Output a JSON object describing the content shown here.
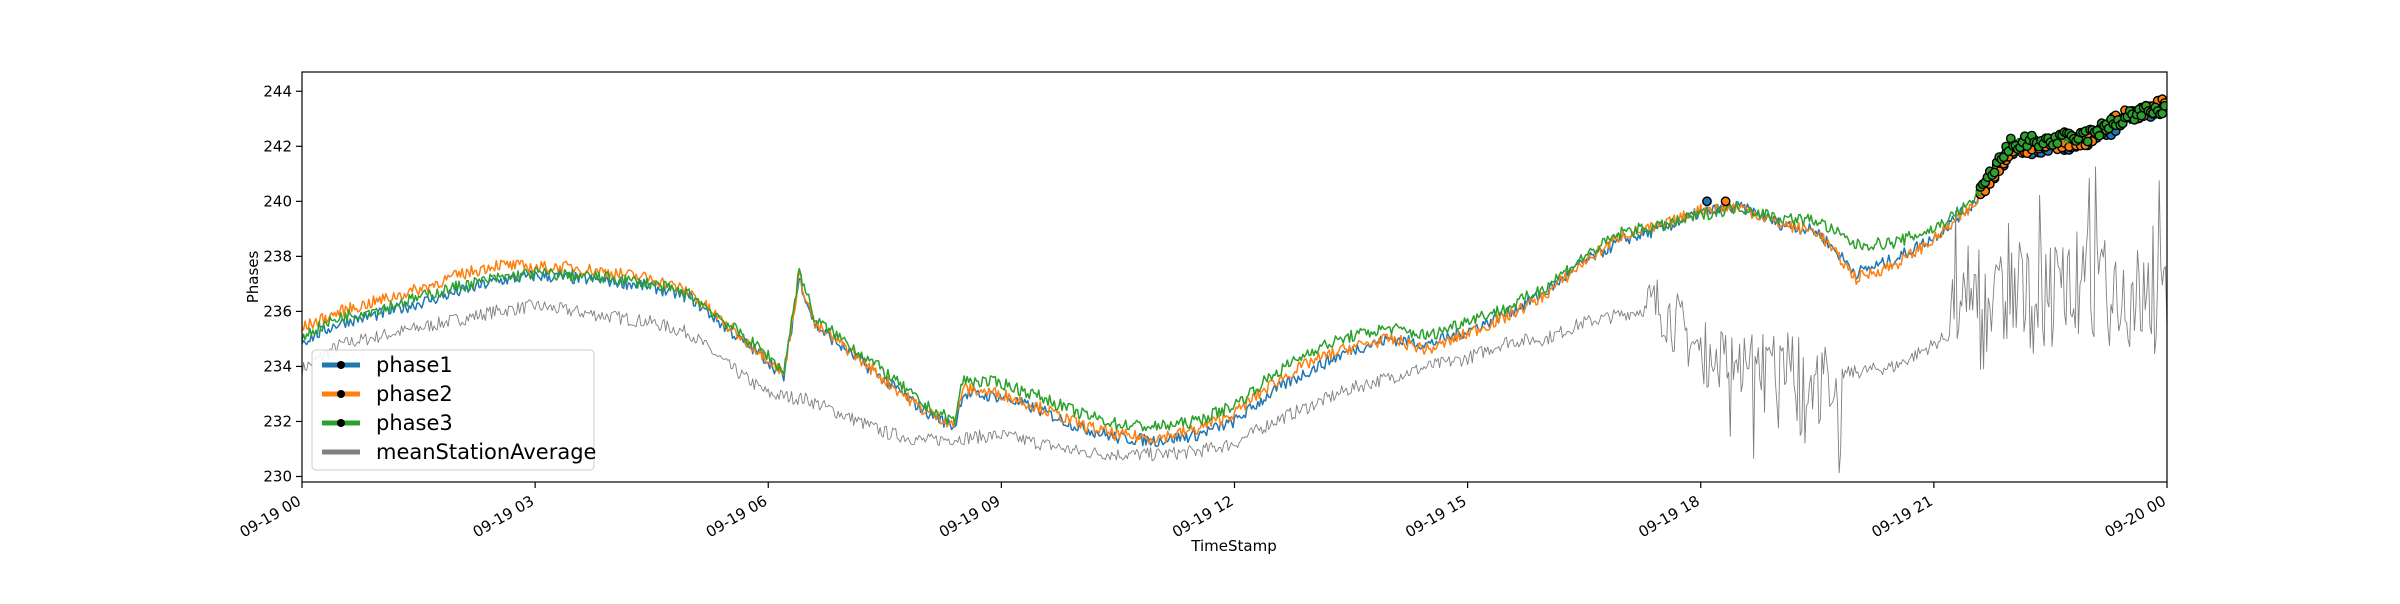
{
  "chart_data": {
    "type": "line",
    "title": "",
    "xlabel": "TimeStamp",
    "ylabel": "Phases",
    "xlim_hours": [
      0,
      24
    ],
    "ylim": [
      229.8,
      244.7
    ],
    "x_ticks": [
      {
        "hour": 0,
        "label": "09-19 00"
      },
      {
        "hour": 3,
        "label": "09-19 03"
      },
      {
        "hour": 6,
        "label": "09-19 06"
      },
      {
        "hour": 9,
        "label": "09-19 09"
      },
      {
        "hour": 12,
        "label": "09-19 12"
      },
      {
        "hour": 15,
        "label": "09-19 15"
      },
      {
        "hour": 18,
        "label": "09-19 18"
      },
      {
        "hour": 21,
        "label": "09-19 21"
      },
      {
        "hour": 24,
        "label": "09-20 00"
      }
    ],
    "y_ticks": [
      230,
      232,
      234,
      236,
      238,
      240,
      242,
      244
    ],
    "grid": false,
    "legend_position": "lower-left",
    "series": [
      {
        "name": "phase1",
        "color": "#1f77b4",
        "marker": "dot",
        "x_hours": [
          0,
          0.5,
          1,
          1.5,
          2,
          2.5,
          3,
          3.5,
          4,
          4.5,
          5,
          5.5,
          6,
          6.2,
          6.4,
          6.6,
          7,
          7.5,
          8,
          8.4,
          8.5,
          9,
          9.5,
          10,
          10.5,
          11,
          11.5,
          12,
          12.5,
          13,
          13.5,
          14,
          14.5,
          15,
          15.5,
          16,
          16.5,
          17,
          17.5,
          18,
          18.5,
          19,
          19.5,
          20,
          20.5,
          21,
          21.5,
          22,
          22.5,
          23,
          23.5,
          24
        ],
        "values": [
          234.9,
          235.6,
          235.9,
          236.3,
          236.7,
          237.1,
          237.3,
          237.2,
          237.1,
          236.9,
          236.5,
          235.3,
          234.2,
          233.6,
          237.2,
          235.5,
          234.6,
          233.5,
          232.4,
          231.8,
          233.0,
          232.9,
          232.4,
          231.8,
          231.4,
          231.3,
          231.5,
          232.0,
          233.1,
          233.9,
          234.6,
          235.0,
          234.8,
          235.3,
          235.9,
          236.7,
          237.8,
          238.6,
          239.0,
          239.6,
          239.8,
          239.2,
          238.9,
          237.4,
          237.9,
          238.7,
          239.9,
          241.9,
          242.0,
          242.2,
          243.0,
          243.3
        ]
      },
      {
        "name": "phase2",
        "color": "#ff7f0e",
        "marker": "dot",
        "x_hours": [
          0,
          0.5,
          1,
          1.5,
          2,
          2.5,
          3,
          3.5,
          4,
          4.5,
          5,
          5.5,
          6,
          6.2,
          6.4,
          6.6,
          7,
          7.5,
          8,
          8.4,
          8.5,
          9,
          9.5,
          10,
          10.5,
          11,
          11.5,
          12,
          12.5,
          13,
          13.5,
          14,
          14.5,
          15,
          15.5,
          16,
          16.5,
          17,
          17.5,
          18,
          18.5,
          19,
          19.5,
          20,
          20.5,
          21,
          21.5,
          22,
          22.5,
          23,
          23.5,
          24
        ],
        "values": [
          235.4,
          236.0,
          236.4,
          236.8,
          237.3,
          237.7,
          237.6,
          237.6,
          237.4,
          237.2,
          236.7,
          235.4,
          234.3,
          233.7,
          237.3,
          235.5,
          234.7,
          233.5,
          232.4,
          231.9,
          233.2,
          233.0,
          232.5,
          231.9,
          231.5,
          231.4,
          231.7,
          232.3,
          233.4,
          234.2,
          234.7,
          235.0,
          234.6,
          235.2,
          235.8,
          236.6,
          237.8,
          238.8,
          239.1,
          239.7,
          239.8,
          239.2,
          238.9,
          237.2,
          237.7,
          238.6,
          239.8,
          241.9,
          242.1,
          242.3,
          243.2,
          243.5
        ]
      },
      {
        "name": "phase3",
        "color": "#2ca02c",
        "marker": "dot",
        "x_hours": [
          0,
          0.5,
          1,
          1.5,
          2,
          2.5,
          3,
          3.5,
          4,
          4.5,
          5,
          5.5,
          6,
          6.2,
          6.4,
          6.6,
          7,
          7.5,
          8,
          8.4,
          8.5,
          9,
          9.5,
          10,
          10.5,
          11,
          11.5,
          12,
          12.5,
          13,
          13.5,
          14,
          14.5,
          15,
          15.5,
          16,
          16.5,
          17,
          17.5,
          18,
          18.5,
          19,
          19.5,
          20,
          20.5,
          21,
          21.5,
          22,
          22.5,
          23,
          23.5,
          24
        ],
        "values": [
          235.1,
          235.8,
          236.1,
          236.5,
          236.9,
          237.2,
          237.4,
          237.3,
          237.2,
          237.0,
          236.6,
          235.5,
          234.4,
          233.8,
          237.5,
          235.7,
          234.9,
          233.8,
          232.6,
          232.0,
          233.5,
          233.4,
          232.9,
          232.3,
          231.9,
          231.8,
          232.0,
          232.6,
          233.7,
          234.6,
          235.1,
          235.4,
          235.1,
          235.7,
          236.1,
          236.9,
          238.0,
          238.9,
          239.1,
          239.5,
          239.8,
          239.4,
          239.3,
          238.4,
          238.5,
          239.0,
          240.0,
          242.1,
          242.2,
          242.4,
          243.1,
          243.4
        ]
      },
      {
        "name": "meanStationAverage",
        "color": "#808080",
        "marker": "none",
        "x_hours": [
          0,
          0.5,
          1,
          1.5,
          2,
          2.5,
          3,
          3.5,
          4,
          4.5,
          5,
          5.5,
          6,
          6.5,
          7,
          7.5,
          8,
          8.5,
          9,
          9.5,
          10,
          10.5,
          11,
          11.5,
          12,
          12.5,
          13,
          13.5,
          14,
          14.5,
          15,
          15.5,
          16,
          16.5,
          17,
          17.5,
          18,
          18.5,
          19,
          19.5,
          20,
          20.5,
          21,
          21.5,
          22,
          22.5,
          23,
          23.5,
          24
        ],
        "values": [
          233.9,
          234.8,
          235.1,
          235.4,
          235.7,
          236.0,
          236.2,
          236.0,
          235.8,
          235.6,
          235.2,
          234.0,
          233.0,
          232.8,
          232.2,
          231.6,
          231.3,
          231.4,
          231.5,
          231.2,
          230.9,
          230.8,
          230.8,
          230.9,
          231.2,
          232.0,
          232.6,
          233.2,
          233.6,
          234.0,
          234.3,
          234.9,
          235.0,
          235.6,
          235.9,
          236.2,
          234.5,
          234.0,
          234.2,
          233.6,
          233.8,
          234.0,
          234.8,
          235.7,
          236.3,
          236.6,
          236.8,
          236.6,
          236.2
        ]
      }
    ]
  }
}
